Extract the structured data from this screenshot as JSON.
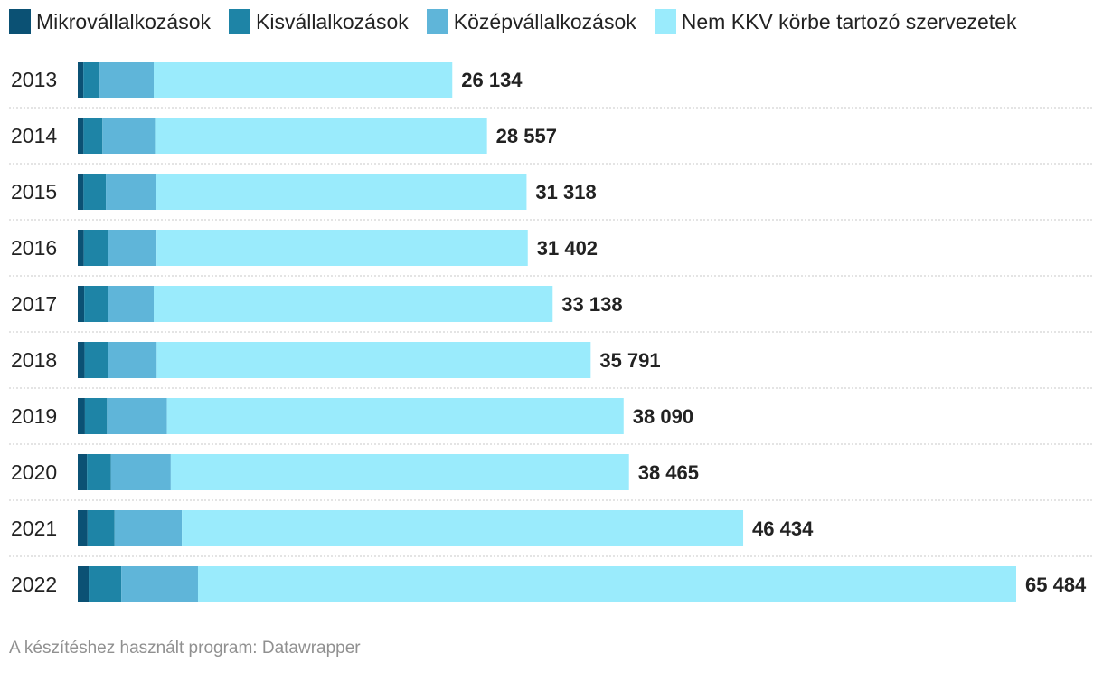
{
  "chart_data": {
    "type": "bar",
    "orientation": "horizontal",
    "stacked": true,
    "categories": [
      "2013",
      "2014",
      "2015",
      "2016",
      "2017",
      "2018",
      "2019",
      "2020",
      "2021",
      "2022"
    ],
    "series": [
      {
        "name": "Mikrovállalkozások",
        "color": "#0b5174",
        "values": [
          390,
          400,
          400,
          420,
          450,
          480,
          500,
          640,
          680,
          760
        ]
      },
      {
        "name": "Kisvállalkozások",
        "color": "#1e84a6",
        "values": [
          1140,
          1320,
          1560,
          1700,
          1660,
          1650,
          1540,
          1680,
          1890,
          2280
        ]
      },
      {
        "name": "Középvállalkozások",
        "color": "#5fb5d9",
        "values": [
          3770,
          3670,
          3510,
          3380,
          3190,
          3380,
          4180,
          4170,
          4690,
          5350
        ]
      },
      {
        "name": "Nem KKV körbe tartozó szervezetek",
        "color": "#9aebfc",
        "values": [
          20834,
          23167,
          25848,
          25902,
          27838,
          30281,
          31870,
          31975,
          39174,
          57094
        ]
      }
    ],
    "totals": [
      26134,
      28557,
      31318,
      31402,
      33138,
      35791,
      38090,
      38465,
      46434,
      65484
    ],
    "total_labels": [
      "26 134",
      "28 557",
      "31 318",
      "31 402",
      "33 138",
      "35 791",
      "38 090",
      "38 465",
      "46 434",
      "65 484"
    ],
    "xlim": [
      0,
      65484
    ],
    "grid": false,
    "legend_position": "top"
  },
  "footer": {
    "text": "A készítéshez használt program: Datawrapper"
  }
}
